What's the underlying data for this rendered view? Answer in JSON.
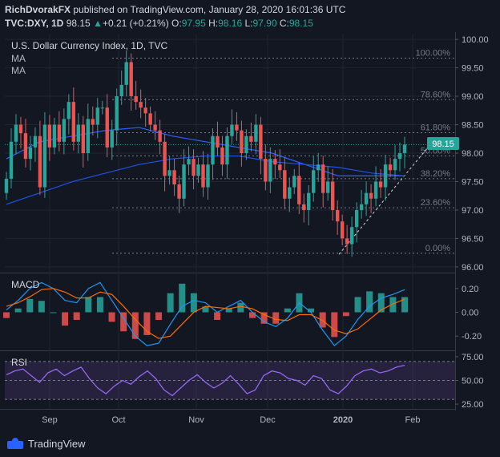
{
  "header": {
    "author": "RichDvorakFX",
    "published": "published on TradingView.com, January 28, 2020 16:01:36 UTC",
    "symbol": "TVC:DXY, 1D",
    "last": "98.15",
    "change_arrow": "▲",
    "change": "+0.21 (+0.21%)",
    "o_label": "O:",
    "o": "97.95",
    "h_label": "H:",
    "h": "98.16",
    "l_label": "L:",
    "l": "97.90",
    "c_label": "C:",
    "c": "98.15"
  },
  "price_pane": {
    "title": "U.S. Dollar Currency Index, 1D, TVC",
    "ma1": "MA",
    "ma2": "MA",
    "price_tag": "98.15"
  },
  "macd_label": "MACD",
  "rsi_label": "RSI",
  "footer": {
    "brand": "TradingView"
  },
  "colors": {
    "up": "#26a69a",
    "down": "#ef5350",
    "background": "#131722",
    "rsi_band": "#7e57c2",
    "ma_fast": "#2962ff",
    "ma_slow": "#1e53e5"
  },
  "chart_data": [
    {
      "type": "candlestick",
      "title": "U.S. Dollar Currency Index, 1D, TVC",
      "ylim": [
        95.9,
        100.1
      ],
      "y_ticks": [
        "100.00",
        "99.50",
        "99.00",
        "98.50",
        "98.00",
        "97.50",
        "97.00",
        "96.50",
        "96.00"
      ],
      "x_ticks": [
        "Sep",
        "Oct",
        "Nov",
        "Dec",
        "2020",
        "Feb"
      ],
      "fibonacci": [
        {
          "label": "100.00%",
          "price": 99.67
        },
        {
          "label": "78.60%",
          "price": 98.94
        },
        {
          "label": "61.80%",
          "price": 98.36
        },
        {
          "label": "50.00%",
          "price": 97.95
        },
        {
          "label": "38.20%",
          "price": 97.55
        },
        {
          "label": "23.60%",
          "price": 97.04
        },
        {
          "label": "0.00%",
          "price": 96.24
        }
      ],
      "close_path": [
        97.55,
        98.2,
        98.5,
        98.35,
        97.9,
        98.1,
        98.3,
        97.4,
        98.5,
        98.1,
        98.5,
        98.2,
        98.6,
        98.9,
        98.2,
        98.5,
        98.0,
        98.6,
        98.5,
        98.8,
        98.8,
        98.1,
        98.4,
        99.0,
        99.2,
        99.6,
        99.0,
        98.9,
        98.8,
        98.7,
        98.5,
        98.4,
        98.2,
        97.6,
        97.7,
        97.45,
        97.2,
        97.8,
        97.9,
        97.6,
        97.8,
        97.4,
        97.8,
        98.3,
        98.1,
        97.8,
        98.3,
        98.5,
        98.4,
        98.0,
        98.3,
        98.2,
        98.5,
        97.9,
        97.5,
        97.9,
        97.8,
        97.7,
        97.2,
        97.4,
        97.6,
        97.1,
        97.0,
        97.3,
        97.7,
        97.8,
        97.3,
        97.5,
        97.0,
        96.8,
        96.5,
        96.4,
        96.7,
        97.0,
        97.1,
        97.3,
        97.2,
        97.5,
        97.4,
        97.8,
        97.7,
        97.9,
        98.0,
        98.15
      ],
      "ma_fast": [
        97.9,
        98.2,
        98.3,
        98.4,
        98.45,
        98.3,
        98.2,
        98.1,
        98.0,
        97.8,
        97.6,
        97.6,
        97.6
      ],
      "ma_slow": [
        97.1,
        97.3,
        97.5,
        97.65,
        97.8,
        97.9,
        97.95,
        97.95,
        97.85,
        97.8,
        97.75,
        97.65,
        97.6
      ]
    },
    {
      "type": "macd",
      "name": "MACD",
      "ylim": [
        -0.32,
        0.32
      ],
      "y_ticks": [
        "0.20",
        "0.00",
        "-0.20"
      ],
      "macd": [
        0.02,
        0.1,
        0.2,
        0.25,
        0.2,
        0.1,
        0.08,
        0.2,
        0.25,
        0.1,
        -0.05,
        -0.2,
        -0.28,
        -0.26,
        -0.1,
        0.05,
        0.1,
        0.08,
        0.0,
        0.05,
        0.1,
        0.0,
        -0.08,
        -0.12,
        -0.05,
        0.08,
        0.0,
        -0.15,
        -0.28,
        -0.2,
        -0.06,
        0.05,
        0.12,
        0.15,
        0.19
      ],
      "signal": [
        0.05,
        0.08,
        0.13,
        0.19,
        0.2,
        0.17,
        0.12,
        0.12,
        0.17,
        0.15,
        0.05,
        -0.06,
        -0.16,
        -0.22,
        -0.2,
        -0.1,
        0.0,
        0.05,
        0.04,
        0.03,
        0.05,
        0.03,
        -0.02,
        -0.06,
        -0.07,
        -0.02,
        -0.02,
        -0.07,
        -0.15,
        -0.18,
        -0.14,
        -0.06,
        0.02,
        0.07,
        0.11
      ]
    },
    {
      "type": "rsi",
      "name": "RSI",
      "ylim": [
        20,
        80
      ],
      "y_ticks": [
        "75.00",
        "50.00",
        "25.00"
      ],
      "band": [
        30,
        70
      ],
      "values": [
        56,
        60,
        62,
        55,
        48,
        58,
        62,
        55,
        60,
        64,
        52,
        42,
        36,
        44,
        50,
        46,
        54,
        60,
        52,
        40,
        34,
        42,
        50,
        56,
        48,
        42,
        47,
        55,
        46,
        36,
        40,
        55,
        60,
        58,
        52,
        50,
        45,
        55,
        52,
        40,
        36,
        44,
        55,
        60,
        62,
        58,
        60,
        64,
        66
      ]
    }
  ]
}
